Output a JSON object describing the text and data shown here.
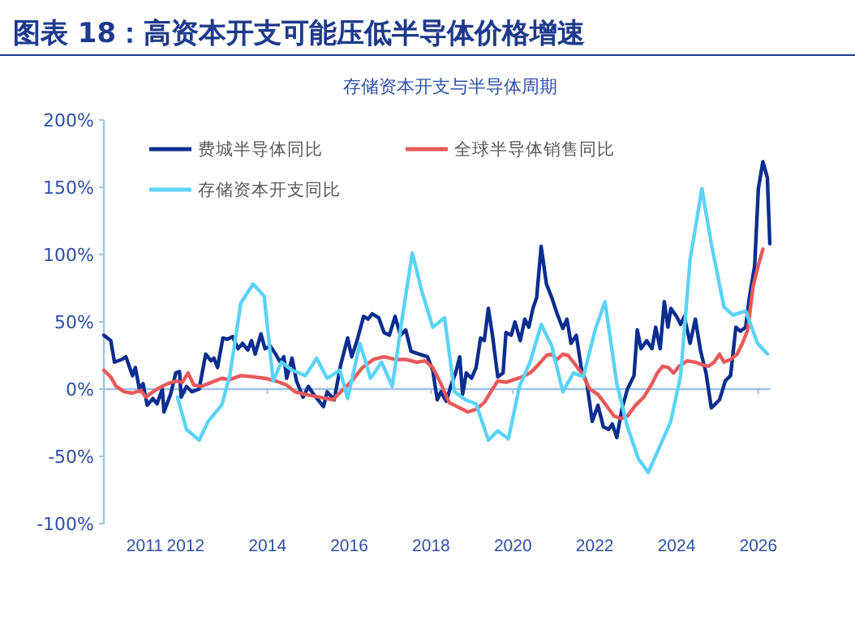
{
  "chart_data": {
    "type": "line",
    "title": "图表 18：高资本开支可能压低半导体价格增速",
    "subtitle": "存储资本开支与半导体周期",
    "xlim": [
      2010,
      2026.3
    ],
    "xticks": [
      2011,
      2012,
      2014,
      2016,
      2018,
      2020,
      2022,
      2024,
      2026
    ],
    "ylim": [
      -100,
      200
    ],
    "yticks": [
      {
        "value": -100,
        "label": "-100%"
      },
      {
        "value": -50,
        "label": "-50%"
      },
      {
        "value": 0,
        "label": "0%"
      },
      {
        "value": 50,
        "label": "50%"
      },
      {
        "value": 100,
        "label": "100%"
      },
      {
        "value": 150,
        "label": "150%"
      },
      {
        "value": 200,
        "label": "200%"
      }
    ],
    "grid": false,
    "legend": "top",
    "ref_lines": [
      {
        "axis": "y",
        "value": 0,
        "color": "#9dc3e6"
      }
    ],
    "line_style": "solid",
    "marker": "none",
    "series": [
      {
        "name": "费城半导体同比",
        "color": "#0a2d8f",
        "x": [
          2010.0,
          2010.17,
          2010.26,
          2010.44,
          2010.54,
          2010.7,
          2010.77,
          2010.87,
          2010.96,
          2011.06,
          2011.2,
          2011.3,
          2011.43,
          2011.47,
          2011.63,
          2011.76,
          2011.85,
          2011.89,
          2012.02,
          2012.15,
          2012.33,
          2012.49,
          2012.62,
          2012.69,
          2012.78,
          2012.91,
          2013.02,
          2013.15,
          2013.28,
          2013.39,
          2013.52,
          2013.61,
          2013.7,
          2013.84,
          2013.94,
          2014.07,
          2014.2,
          2014.31,
          2014.4,
          2014.47,
          2014.6,
          2014.71,
          2014.87,
          2015.0,
          2015.13,
          2015.37,
          2015.46,
          2015.63,
          2015.79,
          2015.96,
          2016.06,
          2016.19,
          2016.35,
          2016.46,
          2016.56,
          2016.72,
          2016.85,
          2016.98,
          2017.12,
          2017.25,
          2017.38,
          2017.51,
          2017.71,
          2017.91,
          2018.04,
          2018.15,
          2018.24,
          2018.37,
          2018.5,
          2018.6,
          2018.7,
          2018.77,
          2018.86,
          2018.99,
          2019.1,
          2019.21,
          2019.3,
          2019.4,
          2019.5,
          2019.63,
          2019.76,
          2019.83,
          2019.96,
          2020.05,
          2020.18,
          2020.29,
          2020.39,
          2020.49,
          2020.58,
          2020.69,
          2020.82,
          2020.95,
          2021.08,
          2021.22,
          2021.32,
          2021.42,
          2021.55,
          2021.68,
          2021.81,
          2021.94,
          2022.08,
          2022.21,
          2022.34,
          2022.43,
          2022.54,
          2022.67,
          2022.8,
          2022.96,
          2023.04,
          2023.13,
          2023.27,
          2023.4,
          2023.49,
          2023.6,
          2023.7,
          2023.79,
          2023.86,
          2024.0,
          2024.1,
          2024.19,
          2024.33,
          2024.46,
          2024.59,
          2024.72,
          2024.85,
          2025.05,
          2025.19,
          2025.32,
          2025.45,
          2025.56,
          2025.69,
          2025.78,
          2025.91,
          2026.0,
          2026.11,
          2026.22,
          2026.28
        ],
        "values": [
          40,
          36,
          20,
          22,
          24,
          10,
          16,
          0,
          4,
          -12,
          -7,
          -11,
          0,
          -17,
          -4,
          12,
          13,
          -6,
          2,
          -2,
          0,
          26,
          21,
          23,
          16,
          38,
          37,
          39,
          30,
          34,
          29,
          36,
          26,
          41,
          30,
          32,
          26,
          20,
          24,
          8,
          23,
          6,
          -6,
          2,
          -4,
          -13,
          -2,
          -8,
          18,
          38,
          24,
          36,
          54,
          52,
          56,
          53,
          42,
          40,
          54,
          40,
          44,
          28,
          26,
          24,
          14,
          -8,
          -2,
          -9,
          4,
          12,
          24,
          -4,
          12,
          8,
          16,
          38,
          36,
          60,
          40,
          9,
          12,
          42,
          40,
          50,
          36,
          52,
          46,
          60,
          68,
          106,
          78,
          68,
          56,
          45,
          52,
          34,
          40,
          14,
          4,
          -24,
          -12,
          -28,
          -30,
          -26,
          -36,
          -14,
          0,
          10,
          44,
          30,
          36,
          30,
          46,
          30,
          65,
          46,
          60,
          54,
          48,
          54,
          34,
          52,
          28,
          12,
          -14,
          -8,
          6,
          10,
          46,
          43,
          46,
          68,
          92,
          149,
          169,
          157,
          108
        ]
      },
      {
        "name": "全球半导体销售同比",
        "color": "#e8595a",
        "x": [
          2010.0,
          2010.17,
          2010.3,
          2010.5,
          2010.7,
          2010.9,
          2011.03,
          2011.2,
          2011.36,
          2011.56,
          2011.76,
          2011.92,
          2012.06,
          2012.2,
          2012.38,
          2012.55,
          2012.88,
          2013.08,
          2013.35,
          2013.68,
          2013.94,
          2014.2,
          2014.47,
          2014.67,
          2014.93,
          2015.26,
          2015.6,
          2015.86,
          2016.06,
          2016.32,
          2016.59,
          2016.85,
          2017.12,
          2017.38,
          2017.65,
          2017.85,
          2018.04,
          2018.24,
          2018.44,
          2018.7,
          2018.9,
          2019.1,
          2019.3,
          2019.5,
          2019.63,
          2019.83,
          2020.03,
          2020.22,
          2020.42,
          2020.62,
          2020.82,
          2020.95,
          2021.08,
          2021.22,
          2021.35,
          2021.48,
          2021.68,
          2021.88,
          2022.08,
          2022.28,
          2022.47,
          2022.65,
          2022.8,
          2023.0,
          2023.2,
          2023.4,
          2023.53,
          2023.66,
          2023.8,
          2023.93,
          2024.06,
          2024.26,
          2024.46,
          2024.63,
          2024.79,
          2024.92,
          2025.05,
          2025.16,
          2025.32,
          2025.48,
          2025.61,
          2025.74,
          2025.87,
          2026.0,
          2026.11
        ],
        "values": [
          14,
          9,
          2,
          -2,
          -3,
          -1,
          -6,
          -2,
          1,
          4,
          6,
          5,
          12,
          3,
          2,
          4,
          8,
          7,
          10,
          9,
          8,
          6,
          3,
          -2,
          -4,
          -6,
          -8,
          0,
          6,
          16,
          22,
          24,
          22,
          22,
          20,
          21,
          16,
          4,
          -10,
          -14,
          -17,
          -15,
          -10,
          0,
          6,
          5,
          7,
          9,
          12,
          18,
          25,
          26,
          22,
          26,
          25,
          20,
          12,
          0,
          -4,
          -12,
          -20,
          -22,
          -20,
          -12,
          -6,
          4,
          12,
          17,
          16,
          12,
          17,
          21,
          20,
          18,
          17,
          20,
          26,
          20,
          22,
          26,
          34,
          44,
          76,
          92,
          104
        ]
      },
      {
        "name": "存储资本开支同比",
        "color": "#5bd3f7",
        "x": [
          2011.8,
          2012.02,
          2012.33,
          2012.55,
          2012.88,
          2013.08,
          2013.35,
          2013.65,
          2013.92,
          2014.14,
          2014.34,
          2014.6,
          2014.93,
          2015.2,
          2015.46,
          2015.77,
          2015.96,
          2016.26,
          2016.52,
          2016.79,
          2017.05,
          2017.31,
          2017.54,
          2017.78,
          2018.04,
          2018.33,
          2018.57,
          2018.84,
          2019.1,
          2019.4,
          2019.63,
          2019.89,
          2020.16,
          2020.42,
          2020.69,
          2020.95,
          2021.22,
          2021.48,
          2021.72,
          2022.01,
          2022.25,
          2022.54,
          2022.8,
          2023.07,
          2023.31,
          2023.57,
          2023.86,
          2024.1,
          2024.33,
          2024.62,
          2024.85,
          2025.16,
          2025.38,
          2025.69,
          2025.98,
          2026.22
        ],
        "values": [
          -6,
          -30,
          -38,
          -24,
          -12,
          10,
          64,
          78,
          69,
          6,
          20,
          14,
          10,
          23,
          8,
          14,
          -7,
          34,
          8,
          20,
          2,
          56,
          101,
          72,
          46,
          53,
          -2,
          -8,
          -11,
          -38,
          -31,
          -37,
          2,
          20,
          48,
          32,
          -2,
          12,
          9,
          44,
          65,
          4,
          -28,
          -52,
          -62,
          -44,
          -24,
          10,
          96,
          149,
          108,
          61,
          55,
          58,
          34,
          26
        ]
      }
    ]
  }
}
